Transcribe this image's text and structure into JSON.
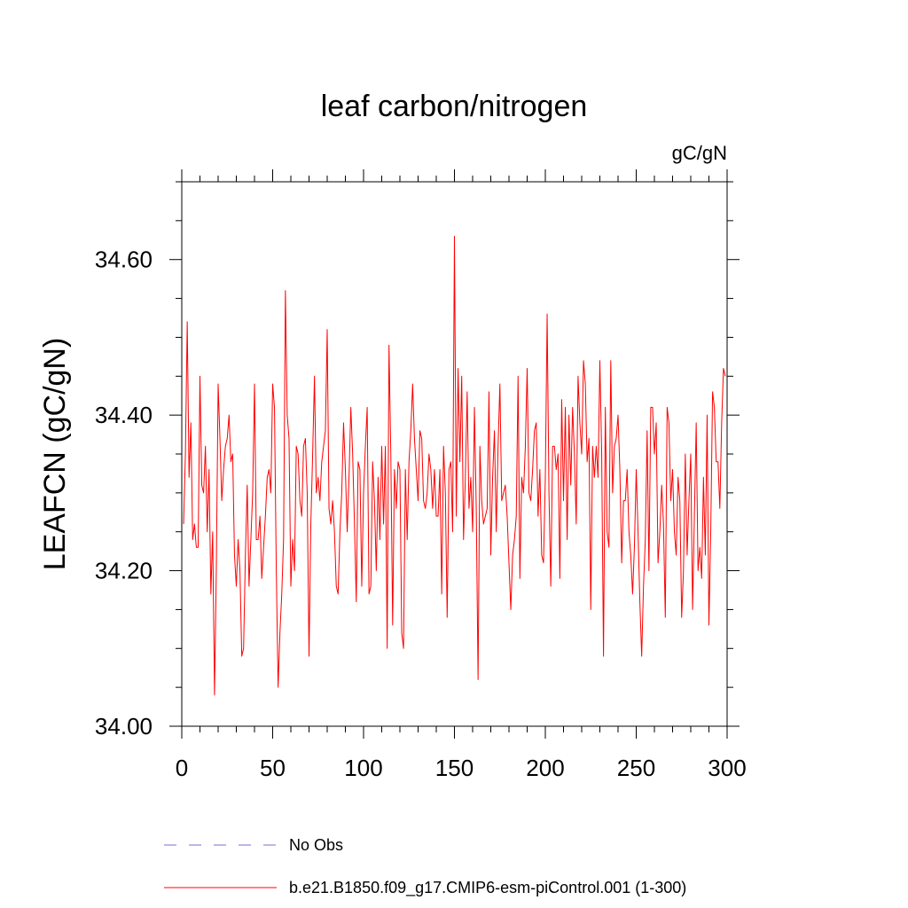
{
  "chart_data": {
    "type": "line",
    "title": "leaf carbon/nitrogen",
    "units_label": "gC/gN",
    "ylabel": "LEAFCN  (gC/gN)",
    "xlabel": "",
    "xlim": [
      0,
      300
    ],
    "ylim": [
      34.0,
      34.7
    ],
    "x_ticks": [
      "0",
      "50",
      "100",
      "150",
      "200",
      "250",
      "300"
    ],
    "y_ticks": [
      "34.00",
      "34.20",
      "34.40",
      "34.60"
    ],
    "grid": false,
    "legend_position": "bottom",
    "legend": [
      {
        "label": "No Obs",
        "color": "#7b6fd0",
        "style": "dashed"
      },
      {
        "label": "b.e21.B1850.f09_g17.CMIP6-esm-piControl.001 (1-300)",
        "color": "#ff0000",
        "style": "solid"
      }
    ],
    "series": [
      {
        "name": "b.e21.B1850.f09_g17.CMIP6-esm-piControl.001 (1-300)",
        "color": "#ff0000",
        "x_start": 1,
        "x_step": 1,
        "values": [
          34.26,
          34.35,
          34.52,
          34.32,
          34.39,
          34.24,
          34.26,
          34.23,
          34.23,
          34.45,
          34.31,
          34.3,
          34.36,
          34.25,
          34.33,
          34.17,
          34.25,
          34.04,
          34.2,
          34.44,
          34.37,
          34.29,
          34.33,
          34.36,
          34.37,
          34.4,
          34.34,
          34.35,
          34.22,
          34.18,
          34.24,
          34.2,
          34.09,
          34.1,
          34.22,
          34.31,
          34.18,
          34.24,
          34.3,
          34.44,
          34.24,
          34.24,
          34.27,
          34.19,
          34.23,
          34.27,
          34.32,
          34.33,
          34.3,
          34.44,
          34.41,
          34.2,
          34.05,
          34.12,
          34.17,
          34.24,
          34.56,
          34.4,
          34.37,
          34.18,
          34.24,
          34.2,
          34.36,
          34.35,
          34.29,
          34.27,
          34.36,
          34.37,
          34.3,
          34.09,
          34.26,
          34.35,
          34.45,
          34.3,
          34.32,
          34.29,
          34.34,
          34.36,
          34.38,
          34.51,
          34.28,
          34.26,
          34.29,
          34.25,
          34.18,
          34.17,
          34.25,
          34.3,
          34.39,
          34.33,
          34.25,
          34.32,
          34.41,
          34.35,
          34.26,
          34.16,
          34.34,
          34.33,
          34.18,
          34.3,
          34.36,
          34.41,
          34.17,
          34.18,
          34.34,
          34.29,
          34.2,
          34.32,
          34.24,
          34.36,
          34.26,
          34.36,
          34.1,
          34.49,
          34.35,
          34.13,
          34.33,
          34.28,
          34.34,
          34.33,
          34.12,
          34.1,
          34.33,
          34.24,
          34.34,
          34.38,
          34.44,
          34.37,
          34.33,
          34.29,
          34.38,
          34.37,
          34.29,
          34.28,
          34.3,
          34.35,
          34.33,
          34.28,
          34.33,
          34.27,
          34.27,
          34.33,
          34.17,
          34.36,
          34.3,
          34.14,
          34.33,
          34.34,
          34.25,
          34.63,
          34.27,
          34.46,
          34.34,
          34.45,
          34.24,
          34.32,
          34.43,
          34.28,
          34.32,
          34.25,
          34.41,
          34.28,
          34.06,
          34.36,
          34.29,
          34.26,
          34.27,
          34.28,
          34.43,
          34.22,
          34.32,
          34.38,
          34.25,
          34.36,
          34.44,
          34.29,
          34.3,
          34.31,
          34.27,
          34.21,
          34.15,
          34.22,
          34.24,
          34.27,
          34.45,
          34.19,
          34.32,
          34.3,
          34.36,
          34.46,
          34.3,
          34.29,
          34.33,
          34.38,
          34.39,
          34.27,
          34.33,
          34.22,
          34.21,
          34.32,
          34.53,
          34.3,
          34.18,
          34.36,
          34.36,
          34.33,
          34.35,
          34.19,
          34.42,
          34.29,
          34.41,
          34.24,
          34.4,
          34.31,
          34.41,
          34.35,
          34.26,
          34.45,
          34.39,
          34.35,
          34.47,
          34.44,
          34.34,
          34.37,
          34.15,
          34.36,
          34.32,
          34.36,
          34.32,
          34.47,
          34.35,
          34.09,
          34.41,
          34.25,
          34.23,
          34.47,
          34.3,
          34.36,
          34.37,
          34.4,
          34.33,
          34.21,
          34.29,
          34.29,
          34.33,
          34.25,
          34.22,
          34.17,
          34.23,
          34.33,
          34.25,
          34.16,
          34.09,
          34.18,
          34.24,
          34.38,
          34.2,
          34.41,
          34.41,
          34.35,
          34.39,
          34.21,
          34.25,
          34.31,
          34.26,
          34.14,
          34.41,
          34.39,
          34.29,
          34.33,
          34.25,
          34.22,
          34.32,
          34.29,
          34.14,
          34.2,
          34.35,
          34.22,
          34.29,
          34.35,
          34.15,
          34.27,
          34.39,
          34.2,
          34.23,
          34.19,
          34.32,
          34.22,
          34.4,
          34.13,
          34.25,
          34.43,
          34.41,
          34.34,
          34.34,
          34.28,
          34.39,
          34.46,
          34.45
        ]
      }
    ]
  }
}
